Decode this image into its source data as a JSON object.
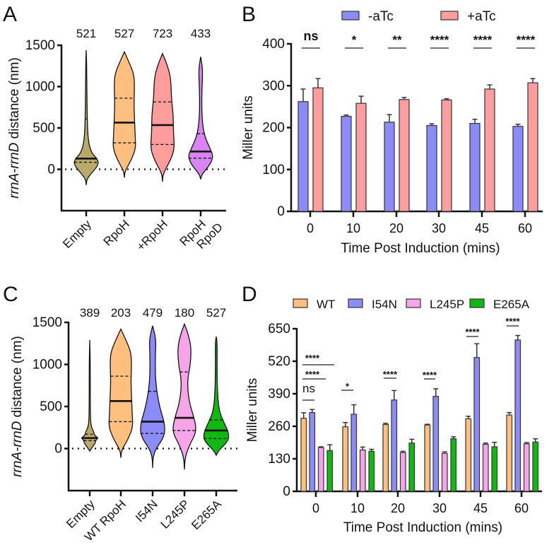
{
  "chart_data": [
    {
      "panel": "A",
      "type": "violin",
      "ylabel_italic": "rrnA-rrnD",
      "ylabel_rest": " distance (nm)",
      "ylim": [
        -500,
        1500
      ],
      "yticks": [
        0,
        500,
        1000,
        1500
      ],
      "reference_line": 0,
      "categories": [
        "Empty",
        "RpoH",
        "+RpoH",
        "RpoH RpoD"
      ],
      "category_lines": [
        [
          "Empty"
        ],
        [
          "RpoH"
        ],
        [
          "+RpoH"
        ],
        [
          "RpoH",
          "RpoD"
        ]
      ],
      "counts": [
        "521",
        "527",
        "723",
        "433"
      ],
      "colors": [
        "#b9aa6c",
        "#ffbf7f",
        "#ff9c9c",
        "#d884f2"
      ],
      "violins": [
        {
          "min": -190,
          "max": 1440,
          "median": 130,
          "q1": 85,
          "q3": 610,
          "density": [
            [
              -190,
              0
            ],
            [
              -120,
              0.05
            ],
            [
              -60,
              0.35
            ],
            [
              60,
              1.0
            ],
            [
              130,
              0.85
            ],
            [
              200,
              0.4
            ],
            [
              350,
              0.15
            ],
            [
              600,
              0.08
            ],
            [
              1000,
              0.05
            ],
            [
              1300,
              0.03
            ],
            [
              1440,
              0
            ]
          ]
        },
        {
          "min": -100,
          "max": 1420,
          "median": 565,
          "q1": 320,
          "q3": 860,
          "density": [
            [
              -100,
              0
            ],
            [
              -20,
              0.05
            ],
            [
              100,
              0.5
            ],
            [
              250,
              0.9
            ],
            [
              400,
              0.85
            ],
            [
              600,
              0.8
            ],
            [
              800,
              0.75
            ],
            [
              1000,
              0.8
            ],
            [
              1150,
              0.75
            ],
            [
              1300,
              0.35
            ],
            [
              1420,
              0
            ]
          ]
        },
        {
          "min": -150,
          "max": 1400,
          "median": 535,
          "q1": 300,
          "q3": 815,
          "density": [
            [
              -150,
              0
            ],
            [
              -50,
              0.05
            ],
            [
              100,
              0.6
            ],
            [
              250,
              0.95
            ],
            [
              450,
              0.85
            ],
            [
              650,
              0.85
            ],
            [
              850,
              0.7
            ],
            [
              1100,
              0.65
            ],
            [
              1250,
              0.4
            ],
            [
              1400,
              0
            ]
          ]
        },
        {
          "min": -120,
          "max": 1360,
          "median": 215,
          "q1": 135,
          "q3": 430,
          "density": [
            [
              -120,
              0
            ],
            [
              -60,
              0.1
            ],
            [
              50,
              0.7
            ],
            [
              150,
              1.0
            ],
            [
              250,
              0.75
            ],
            [
              400,
              0.3
            ],
            [
              600,
              0.1
            ],
            [
              900,
              0.08
            ],
            [
              1150,
              0.15
            ],
            [
              1250,
              0.12
            ],
            [
              1360,
              0
            ]
          ]
        }
      ]
    },
    {
      "panel": "B",
      "type": "bar",
      "xlabel": "Time Post Induction (mins)",
      "ylabel": "Miller units",
      "ylim": [
        0,
        400
      ],
      "yticks": [
        0,
        100,
        200,
        300,
        400
      ],
      "categories": [
        "0",
        "10",
        "20",
        "30",
        "45",
        "60"
      ],
      "legend_placement": "top",
      "series": [
        {
          "name": "-aTc",
          "color": "#8c8cf8",
          "values": [
            262,
            227,
            213,
            205,
            210,
            203
          ],
          "errors": [
            30,
            3,
            18,
            4,
            10,
            5
          ]
        },
        {
          "name": "+aTc",
          "color": "#ff9e9e",
          "values": [
            295,
            258,
            267,
            266,
            292,
            307
          ],
          "errors": [
            22,
            17,
            5,
            3,
            10,
            10
          ]
        }
      ],
      "significance": [
        "ns",
        "*",
        "**",
        "****",
        "****",
        "****"
      ]
    },
    {
      "panel": "C",
      "type": "violin",
      "ylabel_italic": "rrnA-rrnD",
      "ylabel_rest": " distance (nm)",
      "ylim": [
        -500,
        1500
      ],
      "yticks": [
        0,
        500,
        1000,
        1500
      ],
      "reference_line": 0,
      "categories": [
        "Empty",
        "WT RpoH",
        "I54N",
        "L245P",
        "E265A"
      ],
      "counts": [
        "389",
        "203",
        "479",
        "180",
        "527"
      ],
      "colors": [
        "#b9aa6c",
        "#ffbf7f",
        "#8c8cf8",
        "#f5a5e8",
        "#12b812"
      ],
      "violins": [
        {
          "min": -30,
          "max": 1290,
          "median": 125,
          "q1": 95,
          "q3": 170,
          "density": [
            [
              -30,
              0
            ],
            [
              20,
              0.2
            ],
            [
              60,
              0.4
            ],
            [
              100,
              0.45
            ],
            [
              125,
              0.62
            ],
            [
              160,
              0.35
            ],
            [
              200,
              0.3
            ],
            [
              260,
              0.1
            ],
            [
              400,
              0.04
            ],
            [
              1000,
              0.04
            ],
            [
              1290,
              0
            ]
          ]
        },
        {
          "min": -110,
          "max": 1420,
          "median": 565,
          "q1": 320,
          "q3": 860,
          "density": [
            [
              -110,
              0
            ],
            [
              -20,
              0.05
            ],
            [
              100,
              0.5
            ],
            [
              250,
              0.9
            ],
            [
              400,
              0.85
            ],
            [
              600,
              0.8
            ],
            [
              800,
              0.75
            ],
            [
              1000,
              0.8
            ],
            [
              1150,
              0.75
            ],
            [
              1300,
              0.35
            ],
            [
              1420,
              0
            ]
          ]
        },
        {
          "min": -230,
          "max": 1460,
          "median": 320,
          "q1": 180,
          "q3": 680,
          "density": [
            [
              -230,
              0
            ],
            [
              -100,
              0.03
            ],
            [
              0,
              0.25
            ],
            [
              150,
              0.9
            ],
            [
              300,
              0.9
            ],
            [
              500,
              0.5
            ],
            [
              800,
              0.2
            ],
            [
              1100,
              0.2
            ],
            [
              1300,
              0.25
            ],
            [
              1460,
              0
            ]
          ]
        },
        {
          "min": -250,
          "max": 1480,
          "median": 365,
          "q1": 215,
          "q3": 910,
          "density": [
            [
              -250,
              0
            ],
            [
              -100,
              0.05
            ],
            [
              50,
              0.4
            ],
            [
              200,
              0.9
            ],
            [
              350,
              0.75
            ],
            [
              550,
              0.35
            ],
            [
              800,
              0.2
            ],
            [
              1000,
              0.45
            ],
            [
              1200,
              0.5
            ],
            [
              1350,
              0.3
            ],
            [
              1480,
              0
            ]
          ]
        },
        {
          "min": -80,
          "max": 1330,
          "median": 215,
          "q1": 120,
          "q3": 340,
          "density": [
            [
              -80,
              0
            ],
            [
              -20,
              0.2
            ],
            [
              100,
              0.95
            ],
            [
              200,
              0.9
            ],
            [
              300,
              0.6
            ],
            [
              450,
              0.2
            ],
            [
              700,
              0.08
            ],
            [
              1000,
              0.06
            ],
            [
              1250,
              0.07
            ],
            [
              1330,
              0
            ]
          ]
        }
      ]
    },
    {
      "panel": "D",
      "type": "bar",
      "xlabel": "Time Post Induction (mins)",
      "ylabel": "Miller units",
      "ylim": [
        0,
        650
      ],
      "yticks": [
        0,
        130,
        260,
        390,
        520,
        650
      ],
      "categories": [
        "0",
        "10",
        "20",
        "30",
        "45",
        "60"
      ],
      "legend_placement": "top",
      "series": [
        {
          "name": "WT",
          "color": "#ffbf7f",
          "values": [
            292,
            258,
            267,
            265,
            290,
            305
          ],
          "errors": [
            22,
            17,
            5,
            3,
            10,
            10
          ]
        },
        {
          "name": "I54N",
          "color": "#8c8cf8",
          "values": [
            315,
            308,
            365,
            380,
            535,
            605
          ],
          "errors": [
            12,
            38,
            38,
            30,
            55,
            18
          ]
        },
        {
          "name": "L245P",
          "color": "#f5a5e8",
          "values": [
            175,
            165,
            155,
            152,
            188,
            190
          ],
          "errors": [
            3,
            12,
            5,
            6,
            5,
            5
          ]
        },
        {
          "name": "E265A",
          "color": "#12b812",
          "values": [
            163,
            160,
            193,
            210,
            178,
            197
          ],
          "errors": [
            23,
            8,
            15,
            8,
            18,
            13
          ]
        }
      ],
      "significance": [
        {
          "category": "0",
          "compare": "WT vs I54N",
          "label": "ns"
        },
        {
          "category": "0",
          "compare": "WT vs L245P",
          "label": "****"
        },
        {
          "category": "0",
          "compare": "WT vs E265A",
          "label": "****"
        },
        {
          "category": "10",
          "compare": "WT vs I54N",
          "label": "*"
        },
        {
          "category": "20",
          "compare": "WT vs I54N",
          "label": "****"
        },
        {
          "category": "30",
          "compare": "WT vs I54N",
          "label": "****"
        },
        {
          "category": "45",
          "compare": "WT vs I54N",
          "label": "****"
        },
        {
          "category": "60",
          "compare": "WT vs I54N",
          "label": "****"
        }
      ]
    }
  ],
  "panel_labels": [
    "A",
    "B",
    "C",
    "D"
  ]
}
